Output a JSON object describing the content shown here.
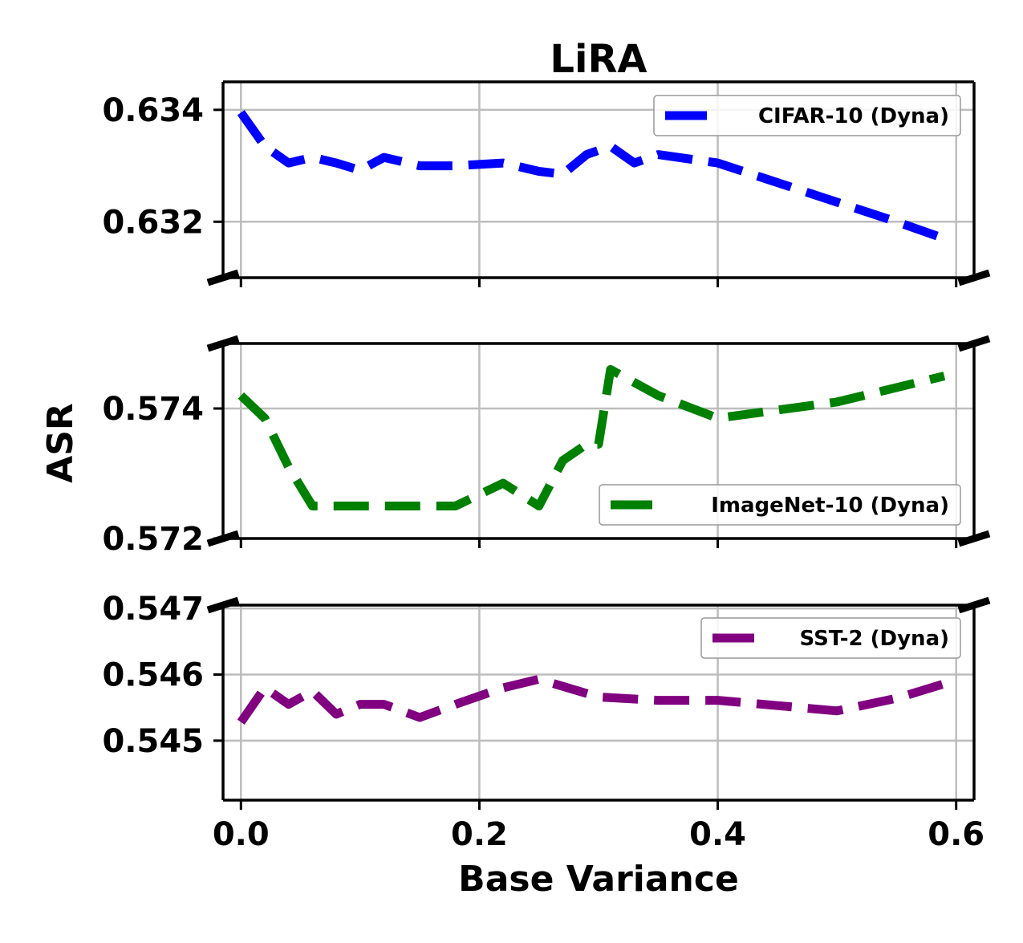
{
  "chart_data": {
    "type": "line",
    "title": "LiRA",
    "xlabel": "Base Variance",
    "ylabel": "ASR",
    "xlim": [
      -0.015,
      0.615
    ],
    "xticks": [
      0.0,
      0.2,
      0.4,
      0.6
    ],
    "xtick_labels": [
      "0.0",
      "0.2",
      "0.4",
      "0.6"
    ],
    "grid": true,
    "legend_location": "right",
    "panels": [
      {
        "series_name": "CIFAR-10 (Dyna)",
        "color": "#0000ff",
        "legend_location": "upper right",
        "ylim": [
          0.631,
          0.6345
        ],
        "yticks": [
          0.632,
          0.634
        ],
        "ytick_labels": [
          "0.632",
          "0.634"
        ],
        "x": [
          0.0,
          0.02,
          0.04,
          0.06,
          0.08,
          0.1,
          0.12,
          0.15,
          0.18,
          0.22,
          0.25,
          0.27,
          0.29,
          0.31,
          0.33,
          0.35,
          0.4,
          0.45,
          0.5,
          0.55,
          0.59
        ],
        "y": [
          0.63395,
          0.63335,
          0.63305,
          0.63315,
          0.63305,
          0.63292,
          0.63315,
          0.633,
          0.633,
          0.63305,
          0.6329,
          0.63285,
          0.6332,
          0.63335,
          0.63305,
          0.6332,
          0.63305,
          0.6327,
          0.63235,
          0.632,
          0.6317
        ]
      },
      {
        "series_name": "ImageNet-10 (Dyna)",
        "color": "#008000",
        "legend_location": "lower right",
        "ylim": [
          0.572,
          0.575
        ],
        "yticks": [
          0.572,
          0.574
        ],
        "ytick_labels": [
          "0.572",
          "0.574"
        ],
        "x": [
          0.0,
          0.02,
          0.04,
          0.06,
          0.1,
          0.15,
          0.18,
          0.22,
          0.25,
          0.27,
          0.29,
          0.3,
          0.31,
          0.35,
          0.4,
          0.5,
          0.59
        ],
        "y": [
          0.5742,
          0.57385,
          0.5731,
          0.5725,
          0.5725,
          0.5725,
          0.5725,
          0.57285,
          0.5725,
          0.5732,
          0.57345,
          0.57345,
          0.5746,
          0.5742,
          0.57385,
          0.5741,
          0.5745
        ]
      },
      {
        "series_name": "SST-2 (Dyna)",
        "color": "#800080",
        "legend_location": "upper right",
        "ylim": [
          0.5441,
          0.54705
        ],
        "yticks": [
          0.545,
          0.546,
          0.547
        ],
        "ytick_labels": [
          "0.545",
          "0.546",
          "0.547"
        ],
        "x": [
          0.0,
          0.02,
          0.04,
          0.06,
          0.08,
          0.1,
          0.12,
          0.15,
          0.18,
          0.22,
          0.25,
          0.3,
          0.35,
          0.4,
          0.45,
          0.5,
          0.55,
          0.59
        ],
        "y": [
          0.54528,
          0.5458,
          0.54555,
          0.54575,
          0.5454,
          0.54555,
          0.54555,
          0.54535,
          0.54555,
          0.5458,
          0.54593,
          0.54566,
          0.54561,
          0.54561,
          0.54553,
          0.54545,
          0.54564,
          0.54586
        ]
      }
    ]
  }
}
